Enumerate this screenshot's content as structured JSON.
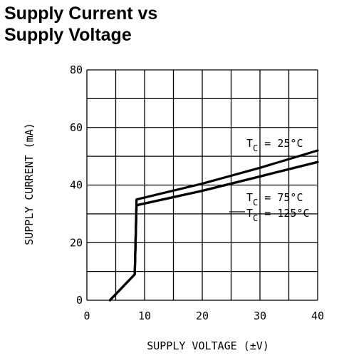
{
  "chart_data": {
    "type": "line",
    "title_lines": [
      "Supply Current vs",
      "Supply Voltage"
    ],
    "xlabel": "SUPPLY VOLTAGE (±V)",
    "ylabel": "SUPPLY CURRENT (mA)",
    "xlim": [
      0,
      40
    ],
    "ylim": [
      0,
      80
    ],
    "xticks": [
      0,
      10,
      20,
      30,
      40
    ],
    "yticks": [
      0,
      20,
      40,
      60,
      80
    ],
    "grid": true,
    "grid_x_step": 5,
    "grid_y_step": 10,
    "series": [
      {
        "name": "T_C = 25°C",
        "x": [
          4,
          8.3,
          8.6,
          20,
          30,
          40
        ],
        "y": [
          0,
          9,
          35,
          40.5,
          46,
          52
        ]
      },
      {
        "name": "T_C = 75°C",
        "x": [
          4,
          8.3,
          8.6,
          20,
          30,
          40
        ],
        "y": [
          0,
          9,
          33,
          38,
          43,
          48
        ]
      },
      {
        "name": "T_C = 125°C",
        "x": [
          4,
          8.3,
          8.6,
          20,
          30,
          40
        ],
        "y": [
          0,
          9,
          33,
          38,
          43,
          48
        ]
      }
    ],
    "annotations": [
      {
        "sub": "C",
        "text": " = 25°C",
        "series": "T_C = 25°C"
      },
      {
        "sub": "C",
        "text": " = 75°C",
        "series": "T_C = 75°C"
      },
      {
        "sub": "C",
        "text": " = 125°C",
        "series": "T_C = 125°C"
      }
    ],
    "line_color": "#000000"
  }
}
